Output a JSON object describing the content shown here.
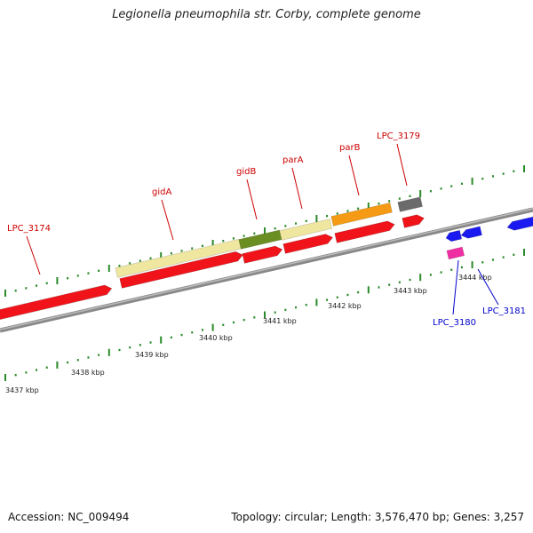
{
  "title": "Legionella pneumophila str. Corby, complete genome",
  "footer": {
    "accession": "Accession: NC_009494",
    "summary": "Topology: circular; Length: 3,576,470 bp; Genes: 3,257"
  },
  "colors": {
    "red": "#f0141a",
    "tan": "#efe6a0",
    "olive": "#6b8e23",
    "orange": "#f49a14",
    "gray": "#6b6b6b",
    "blue": "#1a1af0",
    "pink": "#ef2ea3",
    "label_red": "#cc0000",
    "label_blue": "#0000cc",
    "backbone": "#888888",
    "tick": "#2a8a2a"
  },
  "kbp_labels": [
    "3437 kbp",
    "3438 kbp",
    "3439 kbp",
    "3440 kbp",
    "3441 kbp",
    "3442 kbp",
    "3443 kbp",
    "3444 kbp"
  ],
  "gene_labels": [
    {
      "name": "LPC_3174",
      "color": "red"
    },
    {
      "name": "gidA",
      "color": "red"
    },
    {
      "name": "gidB",
      "color": "red"
    },
    {
      "name": "parA",
      "color": "red"
    },
    {
      "name": "parB",
      "color": "red"
    },
    {
      "name": "LPC_3179",
      "color": "red"
    },
    {
      "name": "LPC_3180",
      "color": "blue"
    },
    {
      "name": "LPC_3181",
      "color": "blue"
    }
  ]
}
